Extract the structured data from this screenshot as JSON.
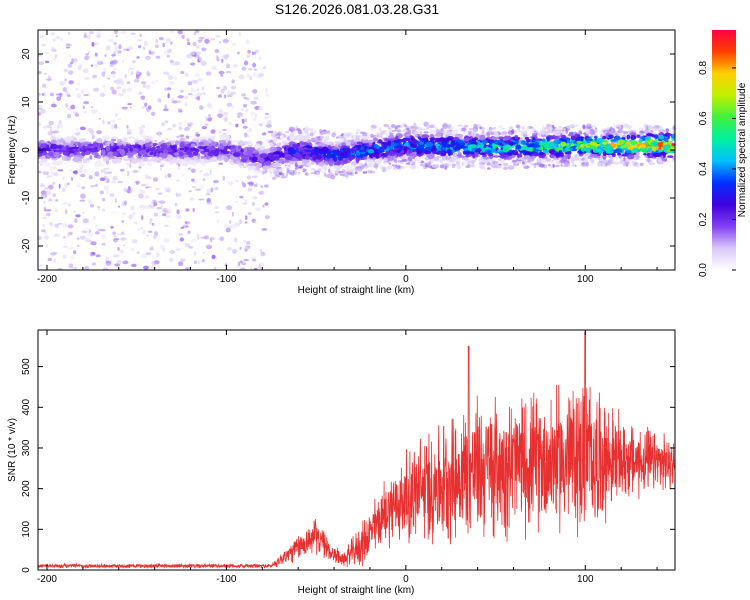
{
  "figure_title": "S126.2026.081.03.28.G31",
  "chart_data": [
    {
      "type": "heatmap",
      "title": "S126.2026.081.03.28.G31",
      "xlabel": "Height of straight line (km)",
      "ylabel": "Frequency (Hz)",
      "xlim": [
        -205,
        150
      ],
      "ylim": [
        -25,
        25
      ],
      "xticks": [
        -200,
        -100,
        0,
        100
      ],
      "xtick_labels": [
        "-200",
        "-100",
        "0",
        "100"
      ],
      "yticks": [
        -20,
        -10,
        0,
        10,
        20
      ],
      "ytick_labels": [
        "-20",
        "-10",
        "0",
        "10",
        "20"
      ],
      "colorbar": {
        "label": "Normalized spectral amplitude",
        "range": [
          0.0,
          0.95
        ],
        "ticks": [
          0.0,
          0.2,
          0.4,
          0.6,
          0.8
        ],
        "tick_labels": [
          "0.0",
          "0.2",
          "0.4",
          "0.6",
          "0.8"
        ],
        "colormap": [
          "#ffffff",
          "#d8c8f8",
          "#8040f0",
          "#4000e0",
          "#0030ff",
          "#00c0ff",
          "#00f0a0",
          "#40f040",
          "#c0f000",
          "#ffd000",
          "#ff4000",
          "#ff0040"
        ]
      },
      "band_center_hz": [
        {
          "x": -200,
          "f": 0
        },
        {
          "x": -150,
          "f": 0
        },
        {
          "x": -100,
          "f": 0
        },
        {
          "x": -80,
          "f": -2
        },
        {
          "x": -60,
          "f": 0
        },
        {
          "x": -40,
          "f": -1
        },
        {
          "x": -20,
          "f": 0
        },
        {
          "x": 0,
          "f": 1
        },
        {
          "x": 50,
          "f": 0.5
        },
        {
          "x": 100,
          "f": 1
        },
        {
          "x": 150,
          "f": 1
        }
      ],
      "noise_extent_hz": [
        {
          "x": -205,
          "spread": 25
        },
        {
          "x": -80,
          "spread": 25
        },
        {
          "x": -75,
          "spread": 5
        },
        {
          "x": 150,
          "spread": 4
        }
      ],
      "peak_amplitude": [
        {
          "x": -200,
          "a": 0.25
        },
        {
          "x": -80,
          "a": 0.25
        },
        {
          "x": -60,
          "a": 0.35
        },
        {
          "x": 0,
          "a": 0.45
        },
        {
          "x": 60,
          "a": 0.55
        },
        {
          "x": 110,
          "a": 0.75
        },
        {
          "x": 150,
          "a": 0.92
        }
      ]
    },
    {
      "type": "line",
      "xlabel": "Height of straight line (km)",
      "ylabel": "SNR (10 * v/v)",
      "xlim": [
        -205,
        150
      ],
      "ylim": [
        0,
        590
      ],
      "xticks": [
        -200,
        -100,
        0,
        100
      ],
      "xtick_labels": [
        "-200",
        "-100",
        "0",
        "100"
      ],
      "yticks": [
        0,
        100,
        200,
        300,
        400,
        500
      ],
      "ytick_labels": [
        "0",
        "100",
        "200",
        "300",
        "400",
        "500"
      ],
      "line_color": "#e83030",
      "envelope": [
        {
          "x": -205,
          "mean": 10,
          "amp": 6
        },
        {
          "x": -75,
          "mean": 10,
          "amp": 6
        },
        {
          "x": -65,
          "mean": 40,
          "amp": 30
        },
        {
          "x": -50,
          "mean": 85,
          "amp": 50
        },
        {
          "x": -42,
          "mean": 45,
          "amp": 30
        },
        {
          "x": -35,
          "mean": 25,
          "amp": 20
        },
        {
          "x": -25,
          "mean": 60,
          "amp": 60
        },
        {
          "x": -10,
          "mean": 150,
          "amp": 100
        },
        {
          "x": 10,
          "mean": 200,
          "amp": 160
        },
        {
          "x": 40,
          "mean": 250,
          "amp": 200
        },
        {
          "x": 80,
          "mean": 270,
          "amp": 190
        },
        {
          "x": 100,
          "mean": 280,
          "amp": 230
        },
        {
          "x": 120,
          "mean": 270,
          "amp": 120
        },
        {
          "x": 150,
          "mean": 260,
          "amp": 70
        }
      ],
      "peaks": [
        {
          "x": 35,
          "y": 550
        },
        {
          "x": 100,
          "y": 585
        }
      ]
    }
  ]
}
